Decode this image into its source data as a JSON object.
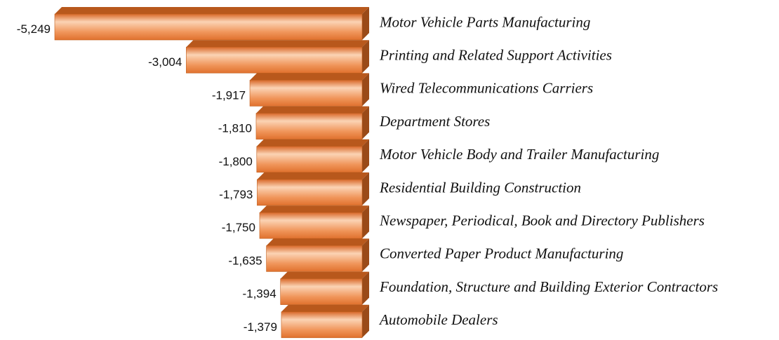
{
  "chart_data": {
    "type": "bar",
    "orientation": "horizontal",
    "categories": [
      "Motor Vehicle Parts Manufacturing",
      "Printing and Related Support Activities",
      "Wired Telecommunications Carriers",
      "Department Stores",
      "Motor Vehicle Body and Trailer Manufacturing",
      "Residential Building Construction",
      "Newspaper, Periodical, Book and Directory Publishers",
      "Converted Paper Product Manufacturing",
      "Foundation, Structure and Building Exterior Contractors",
      "Automobile Dealers"
    ],
    "values": [
      -5249,
      -3004,
      -1917,
      -1810,
      -1800,
      -1793,
      -1750,
      -1635,
      -1394,
      -1379
    ],
    "value_labels": [
      "-5,249",
      "-3,004",
      "-1,917",
      "-1,810",
      "-1,800",
      "-1,793",
      "-1,750",
      "-1,635",
      "-1,394",
      "-1,379"
    ],
    "color": "#e8762a"
  }
}
